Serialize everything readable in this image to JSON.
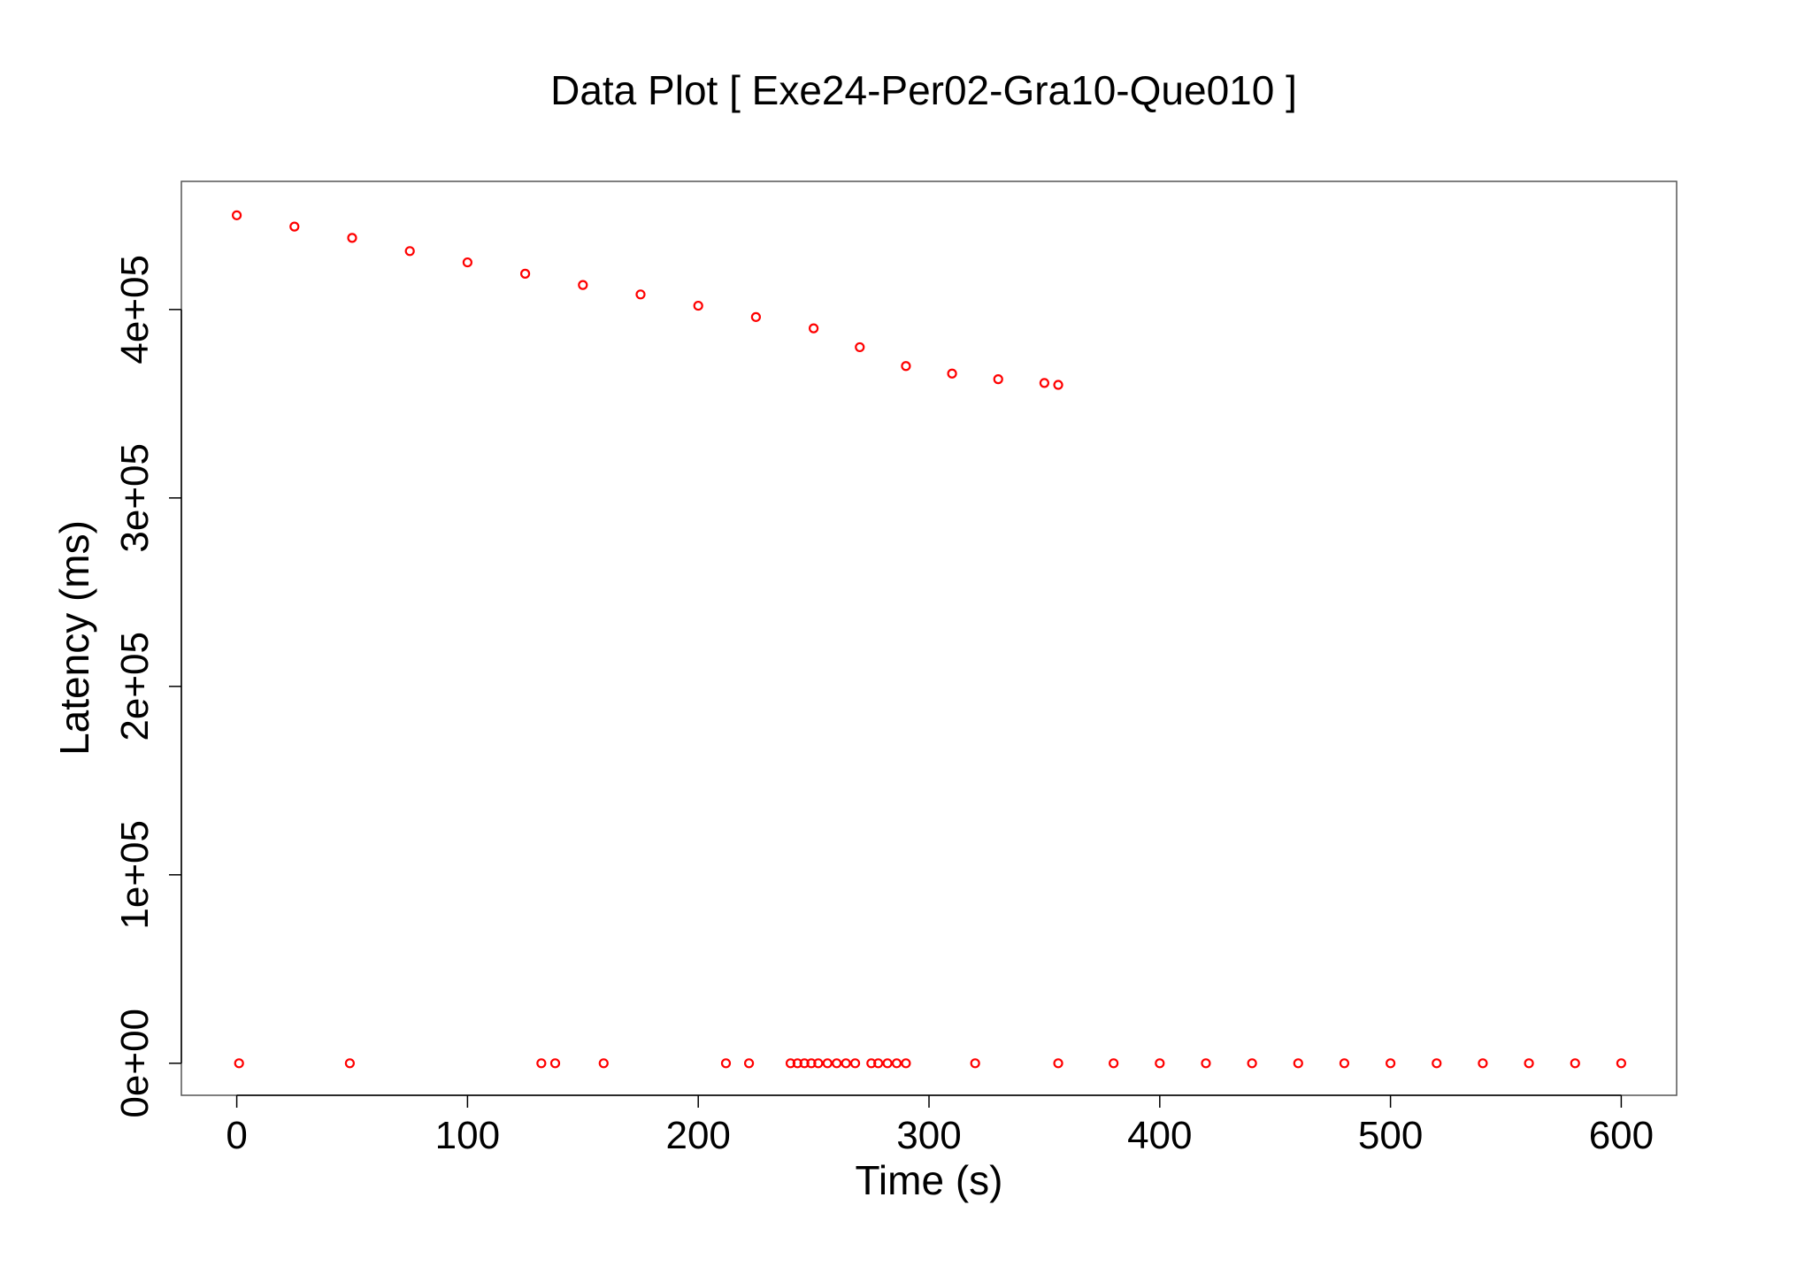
{
  "chart_data": {
    "type": "scatter",
    "title": "Data Plot [ Exe24-Per02-Gra10-Que010 ]",
    "xlabel": "Time (s)",
    "ylabel": "Latency (ms)",
    "xlim": [
      -24,
      624
    ],
    "ylim": [
      -17000,
      468000
    ],
    "x_ticks": [
      0,
      100,
      200,
      300,
      400,
      500,
      600
    ],
    "x_tick_labels": [
      "0",
      "100",
      "200",
      "300",
      "400",
      "500",
      "600"
    ],
    "y_ticks": [
      0,
      100000,
      200000,
      300000,
      400000
    ],
    "y_tick_labels": [
      "0e+00",
      "1e+05",
      "2e+05",
      "3e+05",
      "4e+05"
    ],
    "grid": false,
    "marker": "open-circle",
    "color": "#ff0000",
    "series": [
      {
        "points": [
          [
            0,
            450000
          ],
          [
            25,
            444000
          ],
          [
            50,
            438000
          ],
          [
            75,
            431000
          ],
          [
            100,
            425000
          ],
          [
            125,
            419000
          ],
          [
            150,
            413000
          ],
          [
            175,
            408000
          ],
          [
            200,
            402000
          ],
          [
            225,
            396000
          ],
          [
            250,
            390000
          ],
          [
            270,
            380000
          ],
          [
            290,
            370000
          ],
          [
            310,
            366000
          ],
          [
            330,
            363000
          ],
          [
            350,
            361000
          ],
          [
            356,
            360000
          ],
          [
            1,
            0
          ],
          [
            49,
            0
          ],
          [
            132,
            0
          ],
          [
            138,
            0
          ],
          [
            159,
            0
          ],
          [
            212,
            0
          ],
          [
            222,
            0
          ],
          [
            240,
            0
          ],
          [
            243,
            0
          ],
          [
            246,
            0
          ],
          [
            249,
            0
          ],
          [
            252,
            0
          ],
          [
            256,
            0
          ],
          [
            260,
            0
          ],
          [
            264,
            0
          ],
          [
            268,
            0
          ],
          [
            275,
            0
          ],
          [
            278,
            0
          ],
          [
            282,
            0
          ],
          [
            286,
            0
          ],
          [
            290,
            0
          ],
          [
            320,
            0
          ],
          [
            356,
            0
          ],
          [
            380,
            0
          ],
          [
            400,
            0
          ],
          [
            420,
            0
          ],
          [
            440,
            0
          ],
          [
            460,
            0
          ],
          [
            480,
            0
          ],
          [
            500,
            0
          ],
          [
            520,
            0
          ],
          [
            540,
            0
          ],
          [
            560,
            0
          ],
          [
            580,
            0
          ],
          [
            600,
            0
          ]
        ]
      }
    ]
  }
}
